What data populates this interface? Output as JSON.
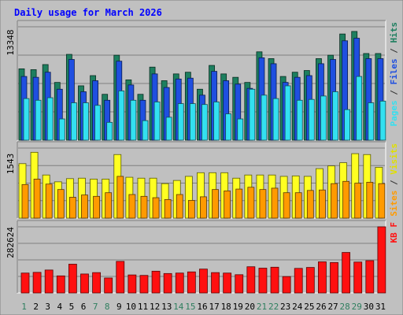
{
  "colors": {
    "page_bg": "#ffffff",
    "frame_bg": "#c0c0c0",
    "plot_bg": "#c0c0c0",
    "title": "#0000ff",
    "axis_text": "#000000",
    "weekend": "#2f7f5f",
    "hits": "#1d7f5f",
    "files": "#1f4fe0",
    "pages": "#33e0f0",
    "visits": "#ffff22",
    "sites": "#ff9a00",
    "kbytes": "#ff1010"
  },
  "chart_data": {
    "type": "bar",
    "title": "Daily usage for March 2026",
    "days": [
      "1",
      "2",
      "3",
      "4",
      "5",
      "6",
      "7",
      "8",
      "9",
      "10",
      "11",
      "12",
      "13",
      "14",
      "15",
      "16",
      "17",
      "18",
      "19",
      "20",
      "21",
      "22",
      "23",
      "24",
      "25",
      "26",
      "27",
      "28",
      "29",
      "30",
      "31"
    ],
    "weekend_days": [
      "1",
      "7",
      "8",
      "14",
      "15",
      "21",
      "22",
      "28",
      "29"
    ],
    "panels": [
      {
        "id": "hits",
        "max_label": "13348",
        "ylim": [
          0,
          13348
        ],
        "right_labels": [
          {
            "text": "Pages",
            "color": "#33e0f0"
          },
          {
            "text": " / ",
            "color": "#333333"
          },
          {
            "text": "Files",
            "color": "#1f4fe0"
          },
          {
            "text": " / ",
            "color": "#333333"
          },
          {
            "text": "Hits",
            "color": "#1d7f5f"
          }
        ],
        "series": [
          {
            "name": "Hits",
            "color": "#1d7f5f",
            "values": [
              8400,
              8300,
              8900,
              6800,
              10100,
              6400,
              7600,
              5400,
              10000,
              7100,
              5400,
              8600,
              7000,
              7800,
              8000,
              6000,
              8800,
              7800,
              7400,
              6800,
              10400,
              9600,
              7500,
              8000,
              8200,
              9600,
              10000,
              12500,
              12800,
              10200,
              10200
            ]
          },
          {
            "name": "Files",
            "color": "#1f4fe0",
            "values": [
              7500,
              7400,
              8000,
              6000,
              9500,
              5700,
              7000,
              4700,
              9300,
              6500,
              4700,
              7800,
              6200,
              7200,
              7300,
              5300,
              8100,
              7000,
              6600,
              6100,
              9700,
              9000,
              6800,
              7400,
              7600,
              9000,
              9500,
              11700,
              12000,
              9600,
              9600
            ]
          },
          {
            "name": "Pages",
            "color": "#33e0f0",
            "values": [
              4900,
              4700,
              5000,
              2500,
              4400,
              4400,
              4100,
              2100,
              5800,
              4700,
              2300,
              4500,
              2700,
              4300,
              4300,
              4200,
              4500,
              3100,
              2500,
              6000,
              5300,
              4900,
              6400,
              4700,
              4800,
              5200,
              5700,
              3600,
              7500,
              4400,
              4600
            ]
          }
        ]
      },
      {
        "id": "visits",
        "max_label": "1543",
        "ylim": [
          0,
          1543
        ],
        "right_labels": [
          {
            "text": "Sites",
            "color": "#ff9a00"
          },
          {
            "text": " / ",
            "color": "#333333"
          },
          {
            "text": "Visits",
            "color": "#e0e000"
          }
        ],
        "series": [
          {
            "name": "Visits",
            "color": "#ffff22",
            "values": [
              1200,
              1450,
              950,
              800,
              870,
              880,
              860,
              860,
              1400,
              900,
              880,
              880,
              760,
              830,
              920,
              1000,
              1000,
              1000,
              880,
              950,
              950,
              950,
              920,
              930,
              920,
              1090,
              1150,
              1220,
              1420,
              1400,
              1120
            ]
          },
          {
            "name": "Sites",
            "color": "#ff9a00",
            "values": [
              740,
              860,
              750,
              630,
              460,
              510,
              480,
              560,
              920,
              520,
              480,
              450,
              410,
              520,
              390,
              470,
              630,
              600,
              640,
              680,
              630,
              660,
              560,
              560,
              610,
              620,
              760,
              810,
              770,
              790,
              760
            ]
          }
        ]
      },
      {
        "id": "kbytes",
        "max_label": "282624",
        "ylim": [
          0,
          282624
        ],
        "right_labels": [
          {
            "text": "KB F",
            "color": "#ff1010"
          }
        ],
        "series": [
          {
            "name": "KBytes",
            "color": "#ff1010",
            "values": [
              85000,
              88000,
              98000,
              73000,
              123000,
              81000,
              87000,
              64000,
              135000,
              77000,
              75000,
              93000,
              83000,
              85000,
              90000,
              102000,
              87000,
              85000,
              78000,
              112000,
              106000,
              110000,
              70000,
              105000,
              109000,
              133000,
              130000,
              173000,
              132000,
              138000,
              282624
            ]
          }
        ]
      }
    ]
  }
}
